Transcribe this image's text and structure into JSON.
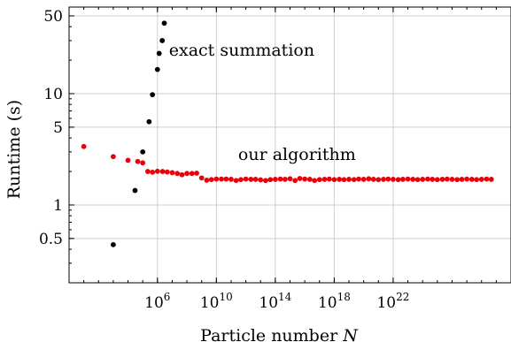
{
  "chart_data": {
    "type": "scatter",
    "x_scale": "log10",
    "y_scale": "log10",
    "xlim": [
      1.0,
      1e+30
    ],
    "ylim": [
      0.2,
      60
    ],
    "xlabel_parts": {
      "text": "Particle number ",
      "var": "N"
    },
    "ylabel": "Runtime (s)",
    "grid": true,
    "x_ticks": [
      {
        "value": 1000000.0,
        "base": "10",
        "exp": "6"
      },
      {
        "value": 10000000000.0,
        "base": "10",
        "exp": "10"
      },
      {
        "value": 100000000000000.0,
        "base": "10",
        "exp": "14"
      },
      {
        "value": 1e+18,
        "base": "10",
        "exp": "18"
      },
      {
        "value": 1e+22,
        "base": "10",
        "exp": "22"
      }
    ],
    "y_ticks": [
      {
        "value": 0.5,
        "label": "0.5"
      },
      {
        "value": 1,
        "label": "1"
      },
      {
        "value": 5,
        "label": "5"
      },
      {
        "value": 10,
        "label": "10"
      },
      {
        "value": 50,
        "label": "50"
      }
    ],
    "series": [
      {
        "name": "exact summation",
        "color": "#000000",
        "points": [
          [
            1000.0,
            0.44
          ],
          [
            30000.0,
            1.35
          ],
          [
            100000.0,
            3.0
          ],
          [
            270000.0,
            5.6
          ],
          [
            460000.0,
            9.8
          ],
          [
            1000000.0,
            16.5
          ],
          [
            1300000.0,
            23
          ],
          [
            2100000.0,
            30
          ],
          [
            2900000.0,
            43
          ]
        ]
      },
      {
        "name": "our algorithm",
        "color": "#e8000b",
        "points": [
          [
            10.0,
            3.35
          ],
          [
            1000.0,
            2.72
          ],
          [
            10000.0,
            2.52
          ],
          [
            46000.0,
            2.46
          ],
          [
            100000.0,
            2.39
          ],
          [
            220000.0,
            2.0
          ],
          [
            460000.0,
            1.97
          ],
          [
            1000000.0,
            2.01
          ],
          [
            2200000.0,
            2.0
          ],
          [
            4600000.0,
            1.98
          ],
          [
            10000000.0,
            1.95
          ],
          [
            22000000.0,
            1.92
          ],
          [
            46000000.0,
            1.87
          ],
          [
            100000000.0,
            1.92
          ],
          [
            220000000.0,
            1.92
          ],
          [
            460000000.0,
            1.93
          ],
          [
            1000000000.0,
            1.75
          ],
          [
            2200000000.0,
            1.67
          ],
          [
            4600000000.0,
            1.69
          ],
          [
            10000000000.0,
            1.71
          ],
          [
            22000000000.0,
            1.71
          ],
          [
            46000000000.0,
            1.71
          ],
          [
            100000000000.0,
            1.7
          ],
          [
            220000000000.0,
            1.66
          ],
          [
            460000000000.0,
            1.69
          ],
          [
            1000000000000.0,
            1.71
          ],
          [
            2200000000000.0,
            1.7
          ],
          [
            4600000000000.0,
            1.7
          ],
          [
            10000000000000.0,
            1.68
          ],
          [
            22000000000000.0,
            1.66
          ],
          [
            46000000000000.0,
            1.69
          ],
          [
            100000000000000.0,
            1.7
          ],
          [
            220000000000000.0,
            1.71
          ],
          [
            460000000000000.0,
            1.7
          ],
          [
            1000000000000000.0,
            1.72
          ],
          [
            2200000000000000.0,
            1.66
          ],
          [
            4600000000000000.0,
            1.73
          ],
          [
            1e+16,
            1.71
          ],
          [
            2.2e+16,
            1.7
          ],
          [
            4.6e+16,
            1.66
          ],
          [
            1e+17,
            1.69
          ],
          [
            2.2e+17,
            1.7
          ],
          [
            4.6e+17,
            1.71
          ],
          [
            1e+18,
            1.69
          ],
          [
            2.2e+18,
            1.7
          ],
          [
            4.6e+18,
            1.69
          ],
          [
            1e+19,
            1.7
          ],
          [
            2.2e+19,
            1.69
          ],
          [
            4.6e+19,
            1.71
          ],
          [
            1e+20,
            1.7
          ],
          [
            2.2e+20,
            1.72
          ],
          [
            4.6e+20,
            1.7
          ],
          [
            1e+21,
            1.69
          ],
          [
            2.2e+21,
            1.7
          ],
          [
            4.6e+21,
            1.71
          ],
          [
            1e+22,
            1.7
          ],
          [
            2.2e+22,
            1.69
          ],
          [
            4.6e+22,
            1.7
          ],
          [
            1e+23,
            1.71
          ],
          [
            2.2e+23,
            1.7
          ],
          [
            4.6e+23,
            1.69
          ],
          [
            1e+24,
            1.7
          ],
          [
            2.2e+24,
            1.71
          ],
          [
            4.6e+24,
            1.7
          ],
          [
            1e+25,
            1.69
          ],
          [
            2.2e+25,
            1.7
          ],
          [
            4.6e+25,
            1.71
          ],
          [
            1e+26,
            1.7
          ],
          [
            2.2e+26,
            1.69
          ],
          [
            4.6e+26,
            1.7
          ],
          [
            1e+27,
            1.71
          ],
          [
            2.2e+27,
            1.7
          ],
          [
            4.6e+27,
            1.69
          ],
          [
            1e+28,
            1.7
          ],
          [
            2.2e+28,
            1.71
          ],
          [
            4.6e+28,
            1.7
          ]
        ]
      }
    ],
    "annotations": [
      {
        "text": "exact summation",
        "x": 6000000.0,
        "y": 22
      },
      {
        "text": "our algorithm",
        "x": 300000000000.0,
        "y": 2.55
      }
    ]
  }
}
